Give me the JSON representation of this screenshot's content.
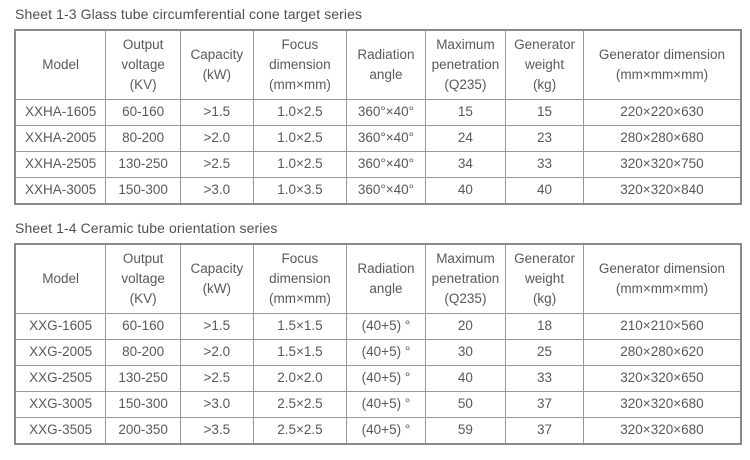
{
  "page": {
    "text_color": "#58595b",
    "border_color": "#8a8a8a",
    "background_color": "#ffffff"
  },
  "tables": [
    {
      "title": "Sheet 1-3 Glass tube circumferential cone target series",
      "headers": [
        "Model",
        "Output\nvoltage\n(KV)",
        "Capacity\n(kW)",
        "Focus\ndimension\n(mm×mm)",
        "Radiation\nangle",
        "Maximum\npenetration\n(Q235)",
        "Generator\nweight\n(kg)",
        "Generator dimension\n(mm×mm×mm)"
      ],
      "rows": [
        [
          "XXHA-1605",
          "60-160",
          ">1.5",
          "1.0×2.5",
          "360°×40°",
          "15",
          "15",
          "220×220×630"
        ],
        [
          "XXHA-2005",
          "80-200",
          ">2.0",
          "1.0×2.5",
          "360°×40°",
          "24",
          "23",
          "280×280×680"
        ],
        [
          "XXHA-2505",
          "130-250",
          ">2.5",
          "1.0×2.5",
          "360°×40°",
          "34",
          "33",
          "320×320×750"
        ],
        [
          "XXHA-3005",
          "150-300",
          ">3.0",
          "1.0×3.5",
          "360°×40°",
          "40",
          "40",
          "320×320×840"
        ]
      ]
    },
    {
      "title": "Sheet 1-4 Ceramic tube orientation series",
      "headers": [
        "Model",
        "Output\nvoltage\n(KV)",
        "Capacity\n(kW)",
        "Focus\ndimension\n(mm×mm)",
        "Radiation\nangle",
        "Maximum\npenetration\n(Q235)",
        "Generator\nweight\n(kg)",
        "Generator dimension\n(mm×mm×mm)"
      ],
      "rows": [
        [
          "XXG-1605",
          "60-160",
          ">1.5",
          "1.5×1.5",
          "(40+5) °",
          "20",
          "18",
          "210×210×560"
        ],
        [
          "XXG-2005",
          "80-200",
          ">2.0",
          "1.5×1.5",
          "(40+5) °",
          "30",
          "25",
          "280×280×620"
        ],
        [
          "XXG-2505",
          "130-250",
          ">2.5",
          "2.0×2.0",
          "(40+5) °",
          "40",
          "33",
          "320×320×650"
        ],
        [
          "XXG-3005",
          "150-300",
          ">3.0",
          "2.5×2.5",
          "(40+5) °",
          "50",
          "37",
          "320×320×680"
        ],
        [
          "XXG-3505",
          "200-350",
          ">3.5",
          "2.5×2.5",
          "(40+5) °",
          "59",
          "37",
          "320×320×680"
        ]
      ]
    }
  ]
}
